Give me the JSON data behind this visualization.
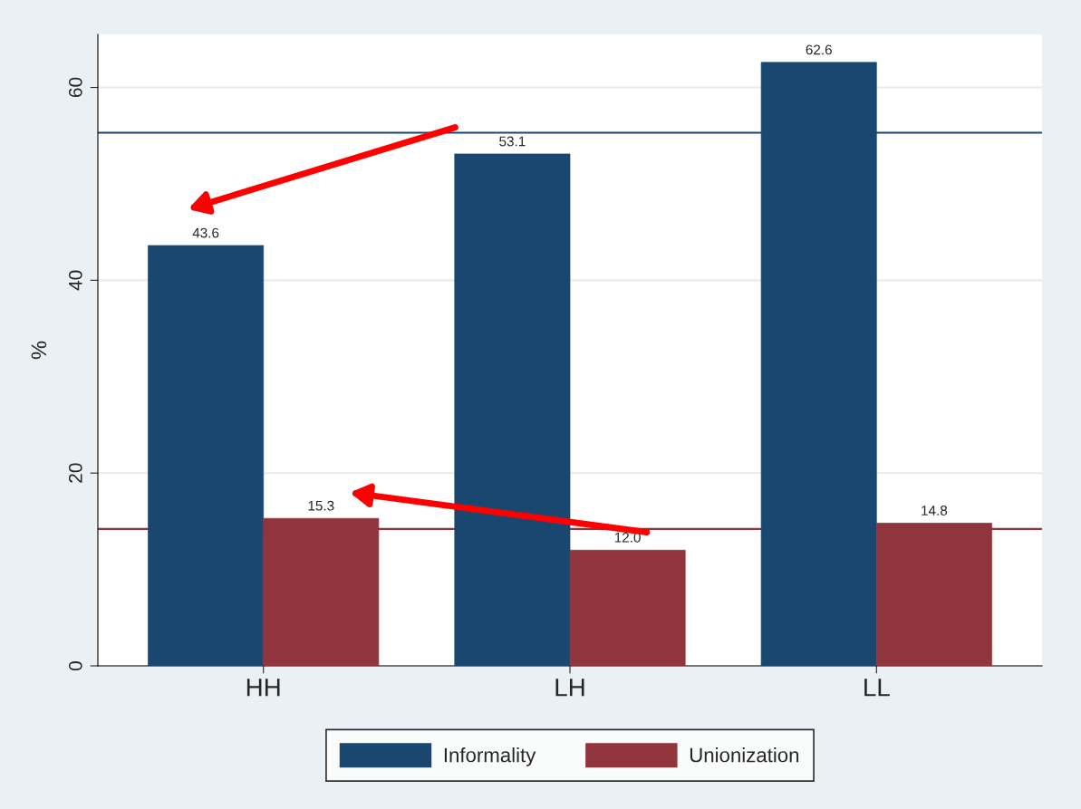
{
  "chart_data": {
    "type": "bar",
    "ylabel": "%",
    "categories": [
      "HH",
      "LH",
      "LL"
    ],
    "series": [
      {
        "name": "Informality",
        "color": "#1a476f",
        "values": [
          43.6,
          53.1,
          62.6
        ]
      },
      {
        "name": "Unionization",
        "color": "#90353b",
        "values": [
          15.3,
          12.0,
          14.8
        ]
      }
    ],
    "value_labels": [
      [
        "43.6",
        "53.1",
        "62.6"
      ],
      [
        "15.3",
        "12.0",
        "14.8"
      ]
    ],
    "ylim": [
      0,
      65.5
    ],
    "yticks": [
      0,
      20,
      40,
      60
    ],
    "grid": "y",
    "legend": "bottom",
    "ref_lines": [
      {
        "axis": "y",
        "value": 55.3,
        "color": "#1a476f"
      },
      {
        "axis": "y",
        "value": 14.2,
        "color": "#90353b"
      }
    ]
  }
}
